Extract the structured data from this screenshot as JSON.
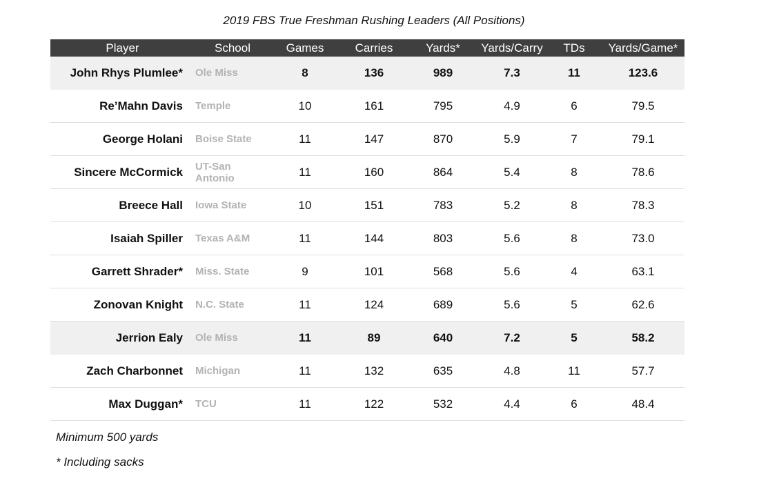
{
  "chart_data": {
    "type": "table",
    "title": "2019 FBS True Freshman Rushing Leaders (All Positions)",
    "columns": [
      "Player",
      "School",
      "Games",
      "Carries",
      "Yards*",
      "Yards/Carry",
      "TDs",
      "Yards/Game*"
    ],
    "rows": [
      {
        "player": "John Rhys Plumlee*",
        "school": "Ole Miss",
        "games": "8",
        "carries": "136",
        "yards": "989",
        "ypc": "7.3",
        "tds": "11",
        "ypg": "123.6",
        "highlight": true
      },
      {
        "player": "Re’Mahn Davis",
        "school": "Temple",
        "games": "10",
        "carries": "161",
        "yards": "795",
        "ypc": "4.9",
        "tds": "6",
        "ypg": "79.5",
        "highlight": false
      },
      {
        "player": "George Holani",
        "school": "Boise State",
        "games": "11",
        "carries": "147",
        "yards": "870",
        "ypc": "5.9",
        "tds": "7",
        "ypg": "79.1",
        "highlight": false
      },
      {
        "player": "Sincere McCormick",
        "school": "UT-San Antonio",
        "games": "11",
        "carries": "160",
        "yards": "864",
        "ypc": "5.4",
        "tds": "8",
        "ypg": "78.6",
        "highlight": false
      },
      {
        "player": "Breece Hall",
        "school": "Iowa State",
        "games": "10",
        "carries": "151",
        "yards": "783",
        "ypc": "5.2",
        "tds": "8",
        "ypg": "78.3",
        "highlight": false
      },
      {
        "player": "Isaiah Spiller",
        "school": "Texas A&M",
        "games": "11",
        "carries": "144",
        "yards": "803",
        "ypc": "5.6",
        "tds": "8",
        "ypg": "73.0",
        "highlight": false
      },
      {
        "player": "Garrett Shrader*",
        "school": "Miss. State",
        "games": "9",
        "carries": "101",
        "yards": "568",
        "ypc": "5.6",
        "tds": "4",
        "ypg": "63.1",
        "highlight": false
      },
      {
        "player": "Zonovan Knight",
        "school": "N.C. State",
        "games": "11",
        "carries": "124",
        "yards": "689",
        "ypc": "5.6",
        "tds": "5",
        "ypg": "62.6",
        "highlight": false
      },
      {
        "player": "Jerrion Ealy",
        "school": "Ole Miss",
        "games": "11",
        "carries": "89",
        "yards": "640",
        "ypc": "7.2",
        "tds": "5",
        "ypg": "58.2",
        "highlight": true
      },
      {
        "player": "Zach Charbonnet",
        "school": "Michigan",
        "games": "11",
        "carries": "132",
        "yards": "635",
        "ypc": "4.8",
        "tds": "11",
        "ypg": "57.7",
        "highlight": false
      },
      {
        "player": "Max Duggan*",
        "school": "TCU",
        "games": "11",
        "carries": "122",
        "yards": "532",
        "ypc": "4.4",
        "tds": "6",
        "ypg": "48.4",
        "highlight": false
      }
    ],
    "notes": [
      "Minimum 500 yards",
      "* Including sacks"
    ],
    "colors": {
      "header_bg": "#3f3f3f",
      "highlight_bg": "#f0f0f0",
      "school_text": "#b3b3b3"
    }
  }
}
